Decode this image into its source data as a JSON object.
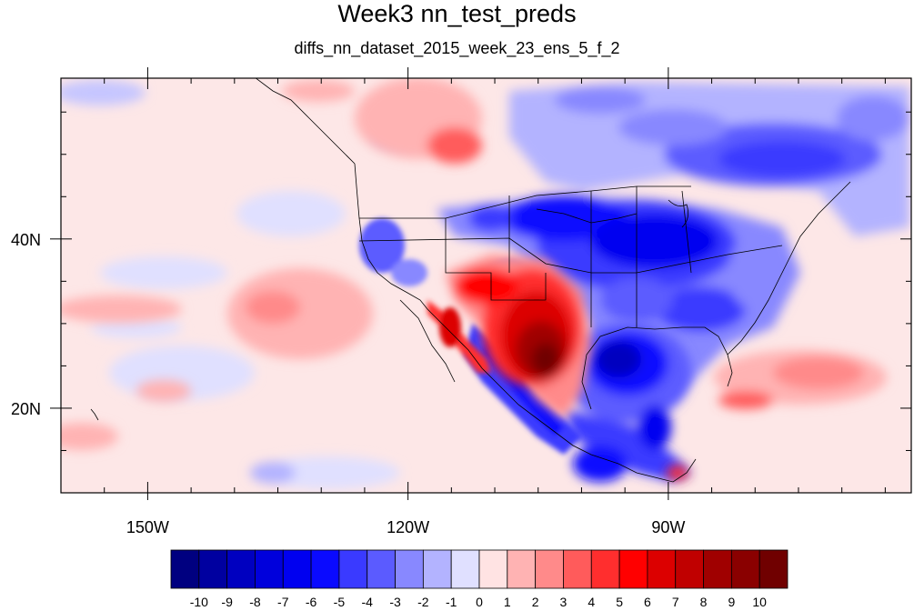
{
  "title": "Week3 nn_test_preds",
  "subtitle": "diffs_nn_dataset_2015_week_23_ens_5_f_2",
  "map": {
    "lon_range": [
      -160,
      -62
    ],
    "lat_range": [
      10,
      59
    ],
    "x_ticks": [
      {
        "lon": -150,
        "label": "150W"
      },
      {
        "lon": -120,
        "label": "120W"
      },
      {
        "lon": -90,
        "label": "90W"
      }
    ],
    "y_ticks": [
      {
        "lat": 40,
        "label": "40N"
      },
      {
        "lat": 20,
        "label": "20N"
      }
    ],
    "ocean_background": "#fde7e7",
    "features": [
      {
        "name": "central-us-cold-anomaly",
        "value": -6,
        "lon": -95,
        "lat": 40
      },
      {
        "name": "texas-warm-anomaly",
        "value": 9,
        "lon": -104,
        "lat": 29
      },
      {
        "name": "gulf-cold-anomaly",
        "value": -6,
        "lon": -91,
        "lat": 25
      },
      {
        "name": "canada-cold-anomaly",
        "value": -5,
        "lon": -80,
        "lat": 50
      },
      {
        "name": "baja-warm-anomaly",
        "value": 7,
        "lon": -112,
        "lat": 28
      },
      {
        "name": "pacific-warm-anomaly",
        "value": 2,
        "lon": -136,
        "lat": 33
      },
      {
        "name": "atlantic-warm-anomaly",
        "value": 2,
        "lon": -72,
        "lat": 24
      },
      {
        "name": "bc-warm-anomaly",
        "value": 4,
        "lon": -113,
        "lat": 52
      }
    ]
  },
  "colorbar": {
    "labels": [
      "-10",
      "-9",
      "-8",
      "-7",
      "-6",
      "-5",
      "-4",
      "-3",
      "-2",
      "-1",
      "0",
      "1",
      "2",
      "3",
      "4",
      "5",
      "6",
      "7",
      "8",
      "9",
      "10"
    ],
    "colors": [
      "#000080",
      "#0000a0",
      "#0000c0",
      "#0000dc",
      "#0000f0",
      "#0a0aff",
      "#3a3aff",
      "#5b5bff",
      "#8888ff",
      "#b3b3ff",
      "#e0e0ff",
      "#ffe3e3",
      "#ffb3b3",
      "#ff8a8a",
      "#ff5b5b",
      "#ff2e2e",
      "#ff0000",
      "#dc0000",
      "#c00000",
      "#a00000",
      "#8a0000",
      "#700000"
    ]
  }
}
